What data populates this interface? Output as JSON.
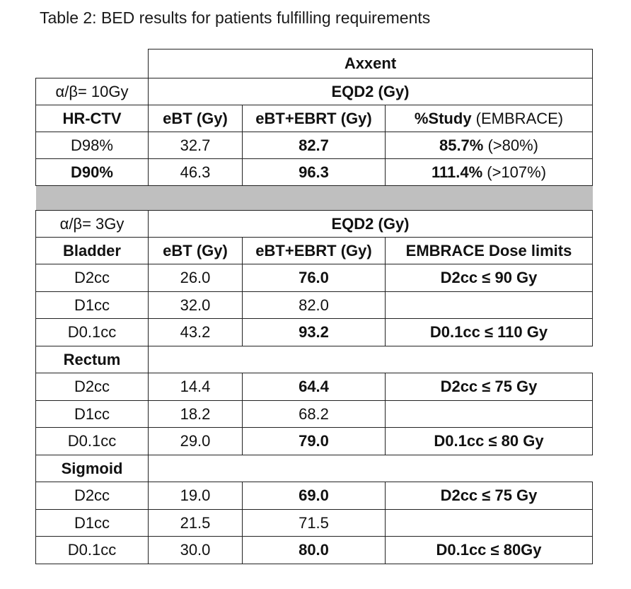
{
  "caption": "Table 2: BED results for patients fulfilling requirements",
  "device": "Axxent",
  "hrctv": {
    "ab": "α/β= 10Gy",
    "eqd2": "EQD2 (Gy)",
    "h_struct": "HR-CTV",
    "h_ebt": "eBT (Gy)",
    "h_total": "eBT+EBRT (Gy)",
    "h_study_b": "%Study",
    "h_study_n": " (EMBRACE)",
    "rows": [
      {
        "label": "D98%",
        "ebt": "32.7",
        "total": "82.7",
        "pct": "85.7%",
        "ref": " (>80%)"
      },
      {
        "label": "D90%",
        "ebt": "46.3",
        "total": "96.3",
        "pct": "111.4%",
        "ref": " (>107%)"
      }
    ]
  },
  "oar": {
    "ab": "α/β= 3Gy",
    "eqd2": "EQD2 (Gy)",
    "h_ebt": "eBT (Gy)",
    "h_total": "eBT+EBRT (Gy)",
    "h_limits": "EMBRACE Dose limits",
    "bladder": {
      "name": "Bladder",
      "rows": [
        {
          "label": "D2cc",
          "ebt": "26.0",
          "total": "76.0",
          "limit": "D2cc ≤ 90 Gy"
        },
        {
          "label": "D1cc",
          "ebt": "32.0",
          "total": "82.0",
          "limit": ""
        },
        {
          "label": "D0.1cc",
          "ebt": "43.2",
          "total": "93.2",
          "limit": "D0.1cc ≤ 110 Gy"
        }
      ]
    },
    "rectum": {
      "name": "Rectum",
      "rows": [
        {
          "label": "D2cc",
          "ebt": "14.4",
          "total": "64.4",
          "limit": "D2cc ≤ 75 Gy"
        },
        {
          "label": "D1cc",
          "ebt": "18.2",
          "total": "68.2",
          "limit": ""
        },
        {
          "label": "D0.1cc",
          "ebt": "29.0",
          "total": "79.0",
          "limit": "D0.1cc ≤ 80 Gy"
        }
      ]
    },
    "sigmoid": {
      "name": "Sigmoid",
      "rows": [
        {
          "label": "D2cc",
          "ebt": "19.0",
          "total": "69.0",
          "limit": "D2cc ≤ 75 Gy"
        },
        {
          "label": "D1cc",
          "ebt": "21.5",
          "total": "71.5",
          "limit": ""
        },
        {
          "label": "D0.1cc",
          "ebt": "30.0",
          "total": "80.0",
          "limit": "D0.1cc ≤ 80Gy"
        }
      ]
    }
  }
}
